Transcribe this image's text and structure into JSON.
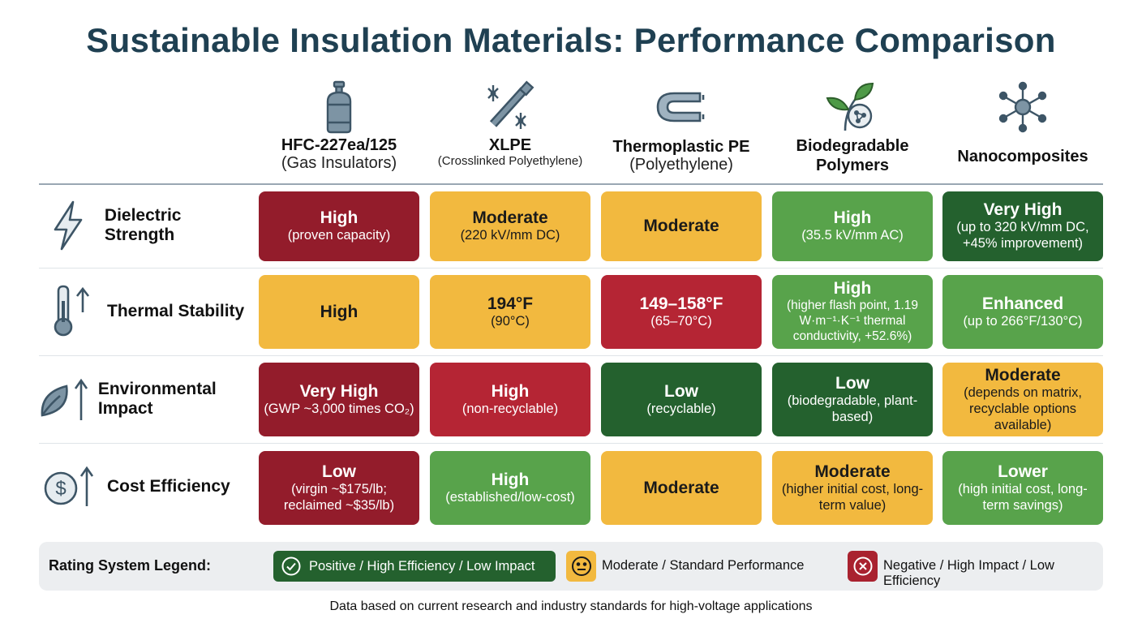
{
  "title": "Sustainable Insulation Materials: Performance Comparison",
  "columns": [
    {
      "name": "HFC-227ea/125",
      "sub": "(Gas Insulators)",
      "icon": "gas-cylinder-icon"
    },
    {
      "name": "XLPE",
      "sub": "(Crosslinked Polyethylene)",
      "icon": "crosslinked-cable-icon"
    },
    {
      "name": "Thermoplastic PE",
      "sub": "(Polyethylene)",
      "icon": "u-pipe-icon"
    },
    {
      "name": "Biodegradable Polymers",
      "sub": "",
      "icon": "leaf-molecule-icon"
    },
    {
      "name": "Nanocomposites",
      "sub": "",
      "icon": "nanoparticle-icon"
    }
  ],
  "rows": [
    {
      "label": "Dielectric Strength",
      "icon": "lightning-icon",
      "cells": [
        {
          "value": "High",
          "detail": "(proven capacity)",
          "tone": "dred"
        },
        {
          "value": "Moderate",
          "detail": "(220 kV/mm DC)",
          "tone": "yel"
        },
        {
          "value": "Moderate",
          "detail": "",
          "tone": "yel"
        },
        {
          "value": "High",
          "detail": "(35.5 kV/mm AC)",
          "tone": "lgrn"
        },
        {
          "value": "Very High",
          "detail": "(up to 320 kV/mm DC, +45% improvement)",
          "tone": "dgrn"
        }
      ]
    },
    {
      "label": "Thermal Stability",
      "icon": "thermometer-up-icon",
      "cells": [
        {
          "value": "High",
          "detail": "",
          "tone": "yel"
        },
        {
          "value": "194°F",
          "detail": "(90°C)",
          "tone": "yel"
        },
        {
          "value": "149–158°F",
          "detail": "(65–70°C)",
          "tone": "red"
        },
        {
          "value": "High",
          "detail": "(higher flash point, 1.19 W·m⁻¹·K⁻¹ thermal conductivity, +52.6%)",
          "tone": "lgrn"
        },
        {
          "value": "Enhanced",
          "detail": "(up to 266°F/130°C)",
          "tone": "lgrn"
        }
      ]
    },
    {
      "label": "Environmental Impact",
      "icon": "leaf-up-icon",
      "cells": [
        {
          "value": "Very High",
          "detail": "(GWP ~3,000 times CO₂)",
          "tone": "dred"
        },
        {
          "value": "High",
          "detail": "(non-recyclable)",
          "tone": "red"
        },
        {
          "value": "Low",
          "detail": "(recyclable)",
          "tone": "dgrn"
        },
        {
          "value": "Low",
          "detail": "(biodegradable, plant-based)",
          "tone": "dgrn"
        },
        {
          "value": "Moderate",
          "detail": "(depends on matrix, recyclable options available)",
          "tone": "yel"
        }
      ]
    },
    {
      "label": "Cost Efficiency",
      "icon": "dollar-up-icon",
      "cells": [
        {
          "value": "Low",
          "detail": "(virgin ~$175/lb; reclaimed ~$35/lb)",
          "tone": "dred"
        },
        {
          "value": "High",
          "detail": "(established/low-cost)",
          "tone": "lgrn"
        },
        {
          "value": "Moderate",
          "detail": "",
          "tone": "yel"
        },
        {
          "value": "Moderate",
          "detail": "(higher initial cost, long-term value)",
          "tone": "yel"
        },
        {
          "value": "Lower",
          "detail": "(high initial cost, long-term savings)",
          "tone": "lgrn"
        }
      ]
    }
  ],
  "legend": {
    "title": "Rating System Legend:",
    "positive": "Positive / High Efficiency / Low Impact",
    "moderate": "Moderate / Standard Performance",
    "negative": "Negative / High Impact / Low Efficiency"
  },
  "colors": {
    "dark_red": "#931c2b",
    "red": "#b52534",
    "yellow": "#f2b93f",
    "light_green": "#58a34b",
    "dark_green": "#24612e",
    "title": "#1f4052"
  },
  "footnote": "Data based on current research and industry standards for high-voltage applications"
}
